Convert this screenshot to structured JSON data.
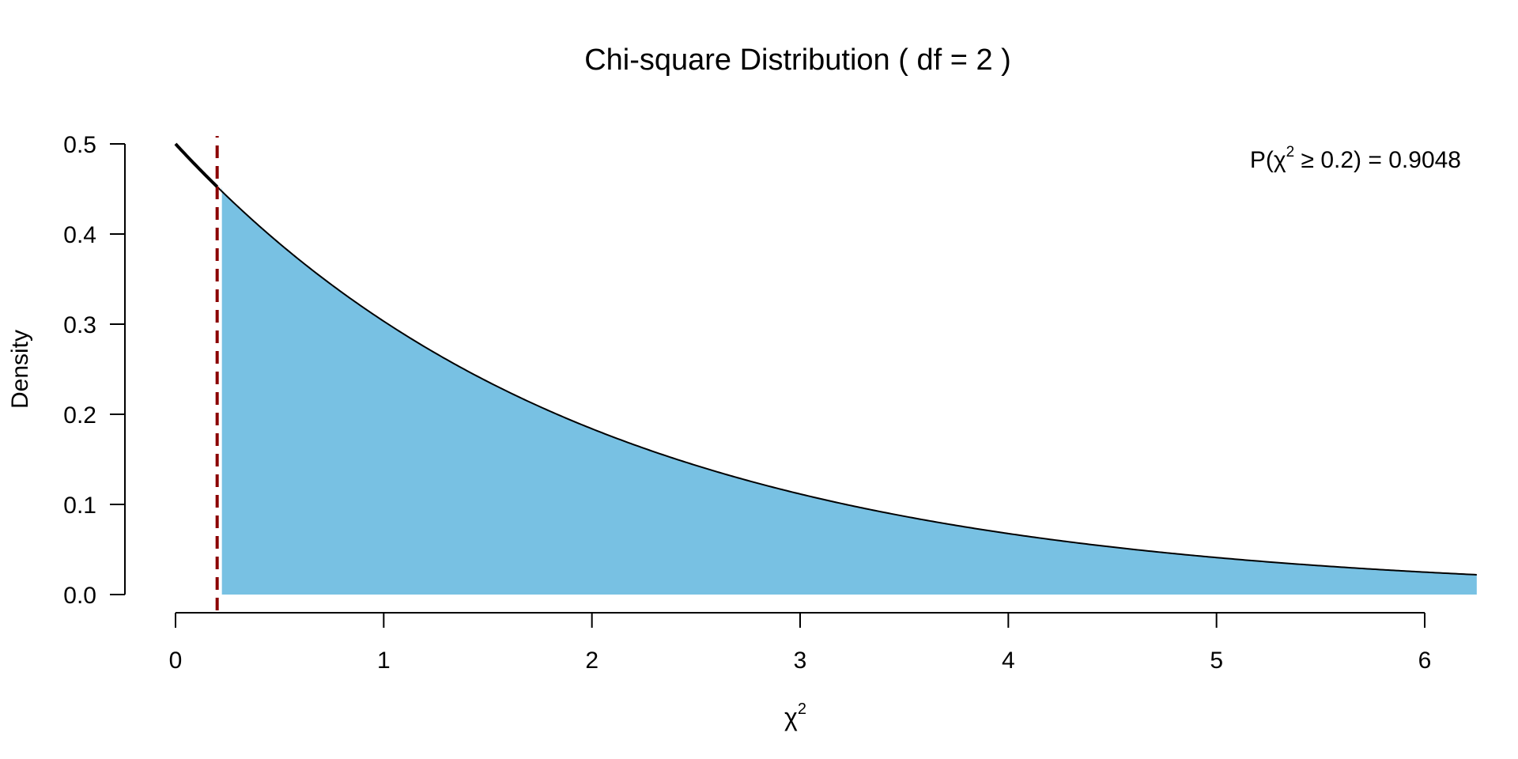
{
  "chart_data": {
    "type": "area",
    "title": "Chi-square Distribution ( df = 2 )",
    "xlabel": "χ",
    "xlabel_superscript": "2",
    "ylabel": "Density",
    "df": 2,
    "xlim": [
      0,
      6.25
    ],
    "ylim": [
      0,
      0.5
    ],
    "x_ticks": [
      0,
      1,
      2,
      3,
      4,
      5,
      6
    ],
    "x_tick_labels": [
      "0",
      "1",
      "2",
      "3",
      "4",
      "5",
      "6"
    ],
    "y_ticks": [
      0,
      0.1,
      0.2,
      0.3,
      0.4,
      0.5
    ],
    "y_tick_labels": [
      "0.0",
      "0.1",
      "0.2",
      "0.3",
      "0.4",
      "0.5"
    ],
    "critical_value": 0.2,
    "shaded_region": [
      0.2,
      6.25
    ],
    "grid": false,
    "series": [
      {
        "x": [
          0,
          0.25,
          0.5,
          0.75,
          1,
          1.5,
          2,
          2.5,
          3,
          3.5,
          4,
          4.5,
          5,
          5.5,
          6,
          6.25
        ],
        "values": [
          0.5,
          0.4412,
          0.3894,
          0.3436,
          0.3033,
          0.2362,
          0.1839,
          0.1433,
          0.1116,
          0.0869,
          0.0677,
          0.0527,
          0.041,
          0.032,
          0.0249,
          0.022
        ]
      }
    ],
    "annotation": {
      "prefix": "P(χ",
      "sup": "2",
      "suffix": " ≥ 0.2) = 0.9048",
      "probability": 0.9048
    },
    "colors": {
      "fill": "#78c1e3",
      "curve": "#000000",
      "critical_line": "#8b0000",
      "axis": "#000000"
    }
  }
}
